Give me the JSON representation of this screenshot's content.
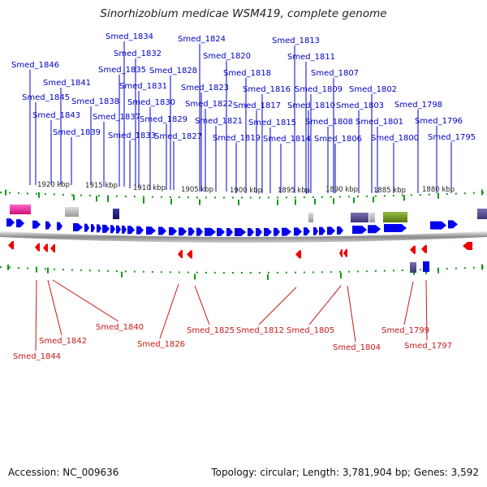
{
  "title": "Sinorhizobium medicae WSM419, complete genome",
  "footer": {
    "accession": "Accession: NC_009636",
    "topology": "Topology: circular; Length: 3,781,904 bp; Genes: 3,592"
  },
  "colors": {
    "forward_gene": "#0000ee",
    "reverse_gene": "#ee0000",
    "forward_label": "#0000c8",
    "reverse_label": "#c81818",
    "tick": "#119911"
  },
  "scale_labels": [
    "1920 kbp",
    "1915 kbp",
    "1910 kbp",
    "1905 kbp",
    "1900 kbp",
    "1895 kbp",
    "1890 kbp",
    "1885 kbp",
    "1880 kbp"
  ],
  "top_genes": [
    "Smed_1846",
    "Smed_1845",
    "Smed_1843",
    "Smed_1841",
    "Smed_1839",
    "Smed_1838",
    "Smed_1837",
    "Smed_1835",
    "Smed_1834",
    "Smed_1833",
    "Smed_1832",
    "Smed_1831",
    "Smed_1830",
    "Smed_1829",
    "Smed_1828",
    "Smed_1827",
    "Smed_1824",
    "Smed_1823",
    "Smed_1822",
    "Smed_1821",
    "Smed_1820",
    "Smed_1819",
    "Smed_1818",
    "Smed_1817",
    "Smed_1816",
    "Smed_1815",
    "Smed_1814",
    "Smed_1813",
    "Smed_1811",
    "Smed_1810",
    "Smed_1809",
    "Smed_1808",
    "Smed_1807",
    "Smed_1806",
    "Smed_1803",
    "Smed_1802",
    "Smed_1801",
    "Smed_1800",
    "Smed_1798",
    "Smed_1796",
    "Smed_1795"
  ],
  "bottom_genes": [
    "Smed_1844",
    "Smed_1842",
    "Smed_1840",
    "Smed_1826",
    "Smed_1825",
    "Smed_1812",
    "Smed_1805",
    "Smed_1804",
    "Smed_1799",
    "Smed_1797"
  ]
}
